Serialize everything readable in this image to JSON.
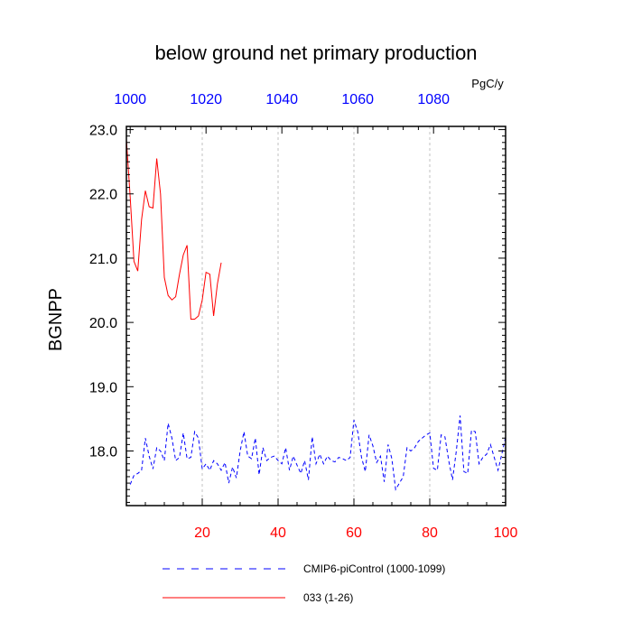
{
  "chart_data": {
    "type": "line",
    "title": "below ground net primary production",
    "units": "PgC/y",
    "ylabel": "BGNPP",
    "xlim": [
      0,
      100
    ],
    "ylim": [
      17.15,
      23.05
    ],
    "top_xlim": [
      999,
      1099
    ],
    "bottom_x_ticks": [
      "20",
      "40",
      "60",
      "80",
      "100"
    ],
    "bottom_x_tick_values": [
      20,
      40,
      60,
      80,
      100
    ],
    "top_x_ticks": [
      "1000",
      "1020",
      "1040",
      "1060",
      "1080"
    ],
    "top_x_tick_values": [
      1000,
      1020,
      1040,
      1060,
      1080
    ],
    "y_ticks": [
      "18.0",
      "19.0",
      "20.0",
      "21.0",
      "22.0",
      "23.0"
    ],
    "y_tick_values": [
      18.0,
      19.0,
      20.0,
      21.0,
      22.0,
      23.0
    ],
    "grid_x": [
      20,
      40,
      60,
      80
    ],
    "legend_position": "bottom",
    "colors": {
      "control": "#0000ff",
      "experiment": "#ff0000",
      "bottom_axis_labels": "#ff0000",
      "top_axis_labels": "#0000ff",
      "grid": "#c0c0c0"
    },
    "series": [
      {
        "name": "CMIP6-piControl (1000-1099)",
        "axis": "top",
        "style": "dashed",
        "x": [
          1000,
          1001,
          1002,
          1003,
          1004,
          1005,
          1006,
          1007,
          1008,
          1009,
          1010,
          1011,
          1012,
          1013,
          1014,
          1015,
          1016,
          1017,
          1018,
          1019,
          1020,
          1021,
          1022,
          1023,
          1024,
          1025,
          1026,
          1027,
          1028,
          1029,
          1030,
          1031,
          1032,
          1033,
          1034,
          1035,
          1036,
          1037,
          1038,
          1039,
          1040,
          1041,
          1042,
          1043,
          1044,
          1045,
          1046,
          1047,
          1048,
          1049,
          1050,
          1051,
          1052,
          1053,
          1054,
          1055,
          1056,
          1057,
          1058,
          1059,
          1060,
          1061,
          1062,
          1063,
          1064,
          1065,
          1066,
          1067,
          1068,
          1069,
          1070,
          1071,
          1072,
          1073,
          1074,
          1075,
          1076,
          1077,
          1078,
          1079,
          1080,
          1081,
          1082,
          1083,
          1084,
          1085,
          1086,
          1087,
          1088,
          1089,
          1090,
          1091,
          1092,
          1093,
          1094,
          1095,
          1096,
          1097,
          1098,
          1099
        ],
        "values": [
          17.48,
          17.62,
          17.65,
          17.7,
          18.2,
          17.92,
          17.72,
          18.05,
          18.0,
          17.85,
          18.43,
          18.2,
          17.85,
          17.9,
          18.28,
          17.88,
          17.9,
          18.3,
          18.2,
          17.72,
          17.8,
          17.7,
          17.85,
          17.8,
          17.7,
          17.82,
          17.5,
          17.75,
          17.58,
          18.0,
          18.3,
          17.92,
          17.88,
          18.2,
          17.63,
          18.05,
          17.85,
          17.9,
          17.92,
          17.85,
          17.8,
          18.05,
          17.7,
          17.92,
          17.78,
          17.65,
          17.85,
          17.55,
          18.22,
          17.8,
          17.95,
          17.8,
          17.92,
          17.85,
          17.83,
          17.9,
          17.88,
          17.85,
          17.9,
          18.48,
          18.3,
          17.9,
          17.68,
          18.25,
          18.08,
          17.82,
          17.92,
          17.52,
          18.1,
          17.88,
          17.4,
          17.5,
          17.6,
          18.05,
          18.0,
          18.05,
          18.15,
          18.2,
          18.25,
          18.28,
          17.73,
          17.7,
          18.25,
          18.22,
          17.85,
          17.55,
          18.0,
          18.55,
          17.68,
          17.65,
          18.32,
          18.3,
          17.8,
          17.9,
          17.95,
          18.1,
          17.9,
          17.7,
          17.95,
          18.22
        ]
      },
      {
        "name": "033 (1-26)",
        "axis": "bottom",
        "style": "solid",
        "x": [
          0,
          1,
          2,
          3,
          4,
          5,
          6,
          7,
          8,
          9,
          10,
          11,
          12,
          13,
          14,
          15,
          16,
          17,
          18,
          19,
          20,
          21,
          22,
          23,
          24,
          25
        ],
        "values": [
          22.85,
          21.95,
          20.95,
          20.8,
          21.6,
          22.05,
          21.8,
          21.78,
          22.55,
          22.0,
          20.7,
          20.42,
          20.35,
          20.4,
          20.75,
          21.05,
          21.2,
          20.05,
          20.05,
          20.1,
          20.35,
          20.78,
          20.75,
          20.1,
          20.6,
          20.93
        ]
      }
    ]
  }
}
